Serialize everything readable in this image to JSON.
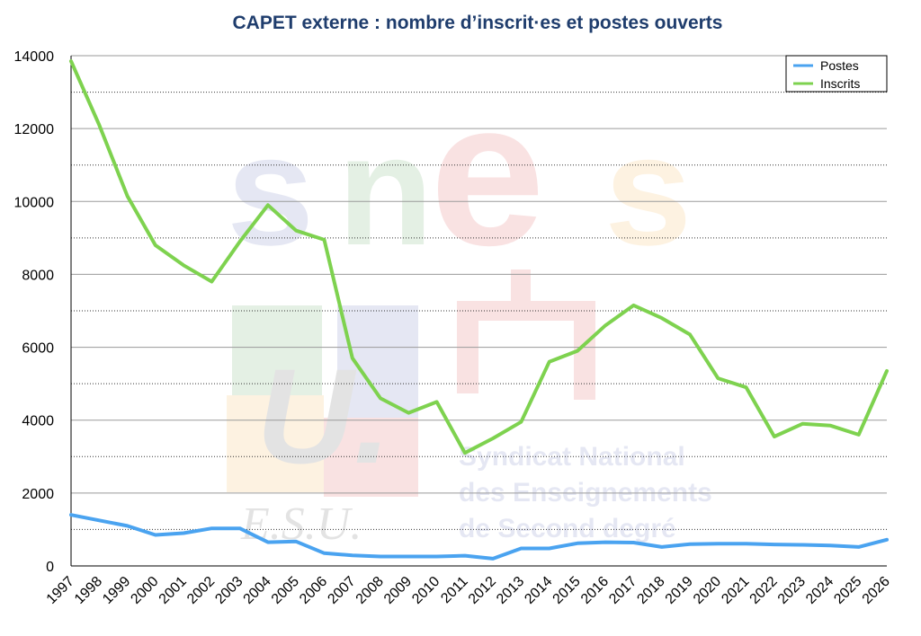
{
  "chart_data": {
    "type": "line",
    "title": "CAPET externe : nombre d’inscrit·es et postes ouverts",
    "xlabel": "",
    "ylabel": "",
    "ylim": [
      0,
      14000
    ],
    "ytick_labels": [
      "0",
      "2000",
      "4000",
      "6000",
      "8000",
      "10000",
      "12000",
      "14000"
    ],
    "grid": "horizontal dotted every 1000",
    "legend_position": "top-right",
    "x": [
      "1997",
      "1998",
      "1999",
      "2000",
      "2001",
      "2002",
      "2003",
      "2004",
      "2005",
      "2006",
      "2007",
      "2008",
      "2009",
      "2010",
      "2011",
      "2012",
      "2013",
      "2014",
      "2015",
      "2016",
      "2017",
      "2018",
      "2019",
      "2020",
      "2021",
      "2022",
      "2023",
      "2024",
      "2025",
      "2026"
    ],
    "series": [
      {
        "name": "Postes",
        "color": "#4aa3f0",
        "values": [
          1400,
          1250,
          1100,
          850,
          900,
          1030,
          1030,
          650,
          670,
          350,
          290,
          260,
          260,
          260,
          280,
          200,
          480,
          480,
          620,
          650,
          640,
          520,
          600,
          610,
          610,
          590,
          580,
          560,
          520,
          720
        ]
      },
      {
        "name": "Inscrits",
        "color": "#7ed24f",
        "values": [
          13850,
          12100,
          10150,
          8800,
          8250,
          7800,
          8900,
          9900,
          9200,
          8950,
          5700,
          4600,
          4200,
          4500,
          3100,
          3500,
          3950,
          5600,
          5900,
          6600,
          7150,
          6800,
          6350,
          5150,
          4900,
          3550,
          3900,
          3850,
          3600,
          5350
        ]
      }
    ]
  },
  "watermark": {
    "letters_top": [
      "s",
      "n",
      "e",
      "s"
    ],
    "u_letter": "U.",
    "esu": "E.S.U.",
    "lines": [
      "Syndicat National",
      "des Enseignements",
      "de Second degré"
    ],
    "colors": [
      "#3d4fa8",
      "#3a8f3a",
      "#d9262c",
      "#f0a020"
    ]
  }
}
